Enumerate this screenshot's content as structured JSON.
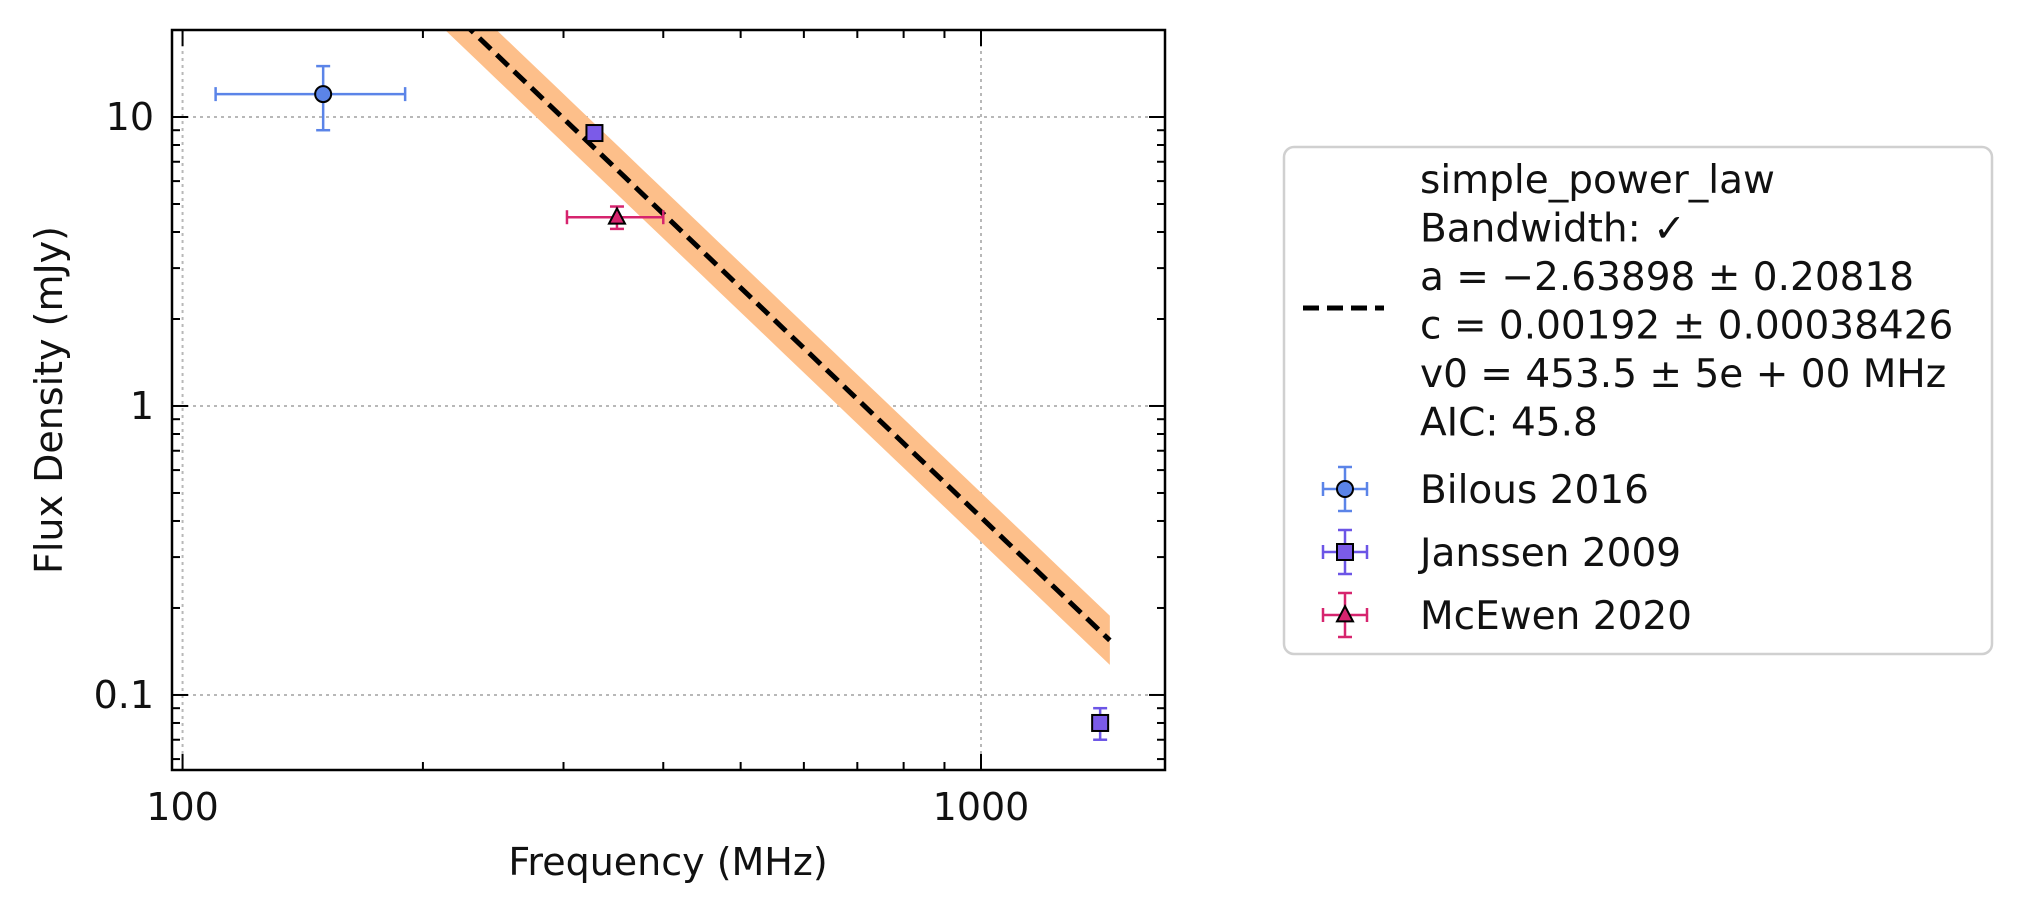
{
  "chart_data": {
    "type": "scatter",
    "title": "",
    "xlabel": "Frequency (MHz)",
    "ylabel": "Flux Density (mJy)",
    "xscale": "log",
    "yscale": "log",
    "xlim": [
      97,
      1700
    ],
    "ylim": [
      0.055,
      20
    ],
    "grid": true,
    "legend_position": "outside-right",
    "x_ticks": [
      {
        "value": 100,
        "label": "100"
      },
      {
        "value": 1000,
        "label": "1000"
      }
    ],
    "y_ticks": [
      {
        "value": 0.1,
        "label": "0.1"
      },
      {
        "value": 1,
        "label": "1"
      },
      {
        "value": 10,
        "label": "10"
      }
    ],
    "fit": {
      "model": "simple_power_law",
      "legend_lines": [
        "simple_power_law",
        "Bandwidth: ✓",
        "a = −2.63898 ± 0.20818",
        "c = 0.00192 ± 0.00038426",
        "v0 = 453.5 ± 5e + 00 MHz",
        "AIC: 45.8"
      ],
      "a": -2.63898,
      "a_err": 0.20818,
      "v0": 453.5,
      "ref_flux": 3.32,
      "x_range": [
        150,
        1450
      ],
      "band_half_width_dex": 0.085,
      "line_color": "#000000",
      "band_color": "#fdbf8a"
    },
    "series": [
      {
        "name": "Bilous 2016",
        "marker": "circle",
        "color": "#5b84e8",
        "edge": "#5b84e8",
        "points": [
          {
            "x": 150,
            "y": 12.0,
            "xerr": [
              40,
              40
            ],
            "yerr": [
              3.0,
              3.0
            ]
          }
        ]
      },
      {
        "name": "Janssen 2009",
        "marker": "square",
        "color": "#7b5be8",
        "edge": "#6c55e6",
        "points": [
          {
            "x": 328,
            "y": 8.8,
            "xerr": [
              5,
              5
            ],
            "yerr": [
              0.4,
              0.4
            ]
          },
          {
            "x": 1410,
            "y": 0.08,
            "xerr": [
              20,
              20
            ],
            "yerr": [
              0.01,
              0.01
            ]
          }
        ]
      },
      {
        "name": "McEwen 2020",
        "marker": "triangle",
        "color": "#d6246e",
        "edge": "#d6246e",
        "points": [
          {
            "x": 350,
            "y": 4.5,
            "xerr": [
              47,
              50
            ],
            "yerr": [
              0.4,
              0.4
            ]
          }
        ]
      }
    ]
  }
}
